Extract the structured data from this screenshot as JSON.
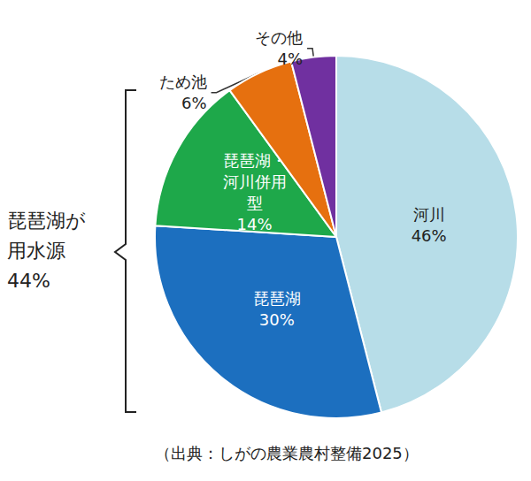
{
  "chart_data": {
    "type": "pie",
    "categories": [
      "河川",
      "琵琶湖",
      "琵琶湖・河川併用型",
      "ため池",
      "その他"
    ],
    "values": [
      46,
      30,
      14,
      6,
      4
    ],
    "value_labels": [
      "46%",
      "30%",
      "14%",
      "6%",
      "4%"
    ],
    "colors": [
      "#b7dde8",
      "#1c6fbf",
      "#1ea84a",
      "#e6700f",
      "#7030a0"
    ],
    "data_labels": true,
    "annotations": [
      {
        "text": "琵琶湖が用水源",
        "value": 44,
        "label": "44%"
      }
    ],
    "source": "（出典：しがの農業農村整備2025）"
  }
}
